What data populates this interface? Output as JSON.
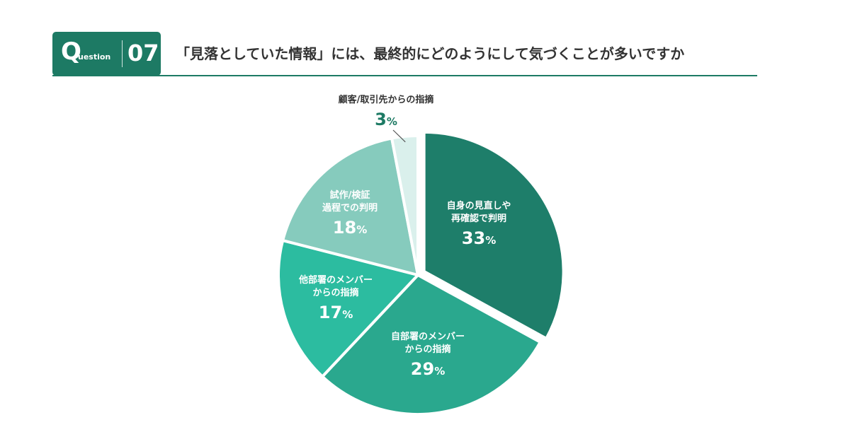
{
  "header": {
    "badge_q": "Q",
    "badge_word": "uestion",
    "badge_number": "07",
    "title": "「見落としていた情報」には、最終的にどのようにして気づくことが多いですか"
  },
  "chart_data": {
    "type": "pie",
    "unit": "%",
    "slices": [
      {
        "label_lines": [
          "自身の見直しや",
          "再確認で判明"
        ],
        "value": 33,
        "color": "#1e7e6a"
      },
      {
        "label_lines": [
          "自部署のメンバー",
          "からの指摘"
        ],
        "value": 29,
        "color": "#2aa88e"
      },
      {
        "label_lines": [
          "他部署のメンバー",
          "からの指摘"
        ],
        "value": 17,
        "color": "#2cbca0"
      },
      {
        "label_lines": [
          "試作/検証",
          "過程での判明"
        ],
        "value": 18,
        "color": "#86cbbd"
      },
      {
        "label_lines": [
          "顧客/取引先からの指摘"
        ],
        "value": 3,
        "color": "#daf0ec"
      }
    ]
  }
}
